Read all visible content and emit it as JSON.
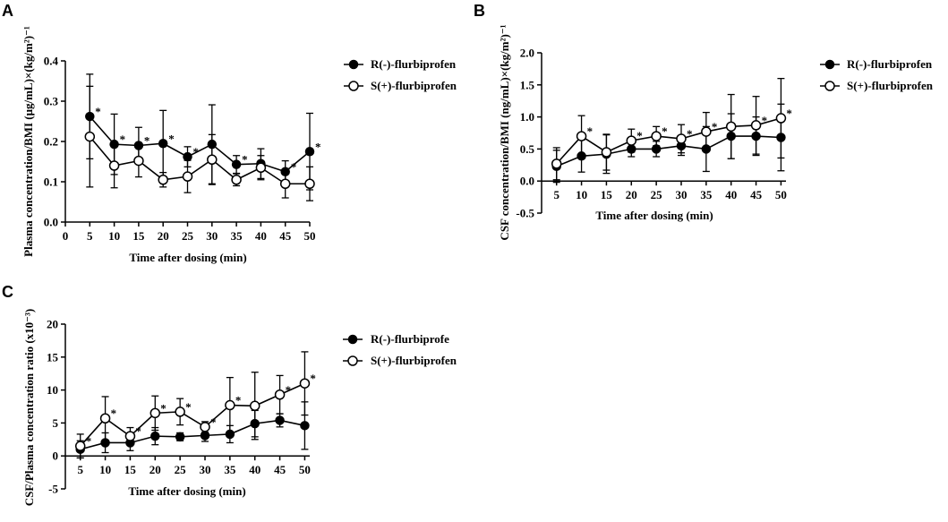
{
  "chart_data": [
    {
      "panel": "A",
      "type": "line",
      "xlabel": "Time after dosing (min)",
      "ylabel": "Plasma concentration/BMI (μg/mL)×(kg/m²)⁻¹",
      "xlim": [
        0,
        50
      ],
      "ylim": [
        0,
        0.4
      ],
      "xticks": [
        "0",
        "5",
        "10",
        "15",
        "20",
        "25",
        "30",
        "35",
        "40",
        "45",
        "50"
      ],
      "yticks": [
        "0.0",
        "0.1",
        "0.2",
        "0.3",
        "0.4"
      ],
      "x": [
        5,
        10,
        15,
        20,
        25,
        30,
        35,
        40,
        45,
        50
      ],
      "series": [
        {
          "name": "R(-)-flurbiprofen",
          "marker": "filled",
          "values": [
            0.262,
            0.193,
            0.19,
            0.195,
            0.162,
            0.193,
            0.143,
            0.145,
            0.125,
            0.175
          ],
          "errors": [
            0.105,
            0.075,
            0.045,
            0.082,
            0.025,
            0.098,
            0.022,
            0.037,
            0.027,
            0.095
          ]
        },
        {
          "name": "S(+)-flurbiprofen",
          "marker": "open",
          "values": [
            0.212,
            0.14,
            0.152,
            0.105,
            0.113,
            0.155,
            0.105,
            0.135,
            0.095,
            0.095
          ],
          "errors": [
            0.125,
            0.055,
            0.04,
            0.018,
            0.04,
            0.062,
            0.015,
            0.03,
            0.035,
            0.042
          ]
        }
      ],
      "stars_x": [
        5,
        10,
        15,
        20,
        25,
        35,
        45,
        50
      ]
    },
    {
      "panel": "B",
      "type": "line",
      "xlabel": "Time after dosing (min)",
      "ylabel": "CSF concentration/BMI (ng/mL)×(kg/m²)⁻¹",
      "xlim": [
        2,
        51
      ],
      "ylim": [
        -0.5,
        2.0
      ],
      "xticks": [
        "5",
        "10",
        "15",
        "20",
        "25",
        "30",
        "35",
        "40",
        "45",
        "50"
      ],
      "yticks": [
        "-0.5",
        "0.0",
        "0.5",
        "1.0",
        "1.5",
        "2.0"
      ],
      "x": [
        5,
        10,
        15,
        20,
        25,
        30,
        35,
        40,
        45,
        50
      ],
      "series": [
        {
          "name": "R(-)-flurbiprofen",
          "marker": "filled",
          "values": [
            0.23,
            0.39,
            0.42,
            0.5,
            0.5,
            0.55,
            0.5,
            0.7,
            0.7,
            0.68
          ],
          "errors": [
            0.25,
            0.25,
            0.3,
            0.12,
            0.12,
            0.15,
            0.35,
            0.35,
            0.3,
            0.52
          ]
        },
        {
          "name": "S(+)-flurbiprofen",
          "marker": "open",
          "values": [
            0.27,
            0.7,
            0.45,
            0.63,
            0.7,
            0.66,
            0.77,
            0.85,
            0.87,
            0.98
          ],
          "errors": [
            0.25,
            0.32,
            0.28,
            0.18,
            0.15,
            0.22,
            0.3,
            0.5,
            0.45,
            0.62
          ]
        }
      ],
      "stars_x": [
        10,
        20,
        25,
        30,
        35,
        45,
        50
      ]
    },
    {
      "panel": "C",
      "type": "line",
      "xlabel": "Time after dosing (min)",
      "ylabel": "CSF/Plasma concentration ratio (x10⁻³)",
      "xlim": [
        2,
        51
      ],
      "ylim": [
        -5,
        20
      ],
      "xticks": [
        "5",
        "10",
        "15",
        "20",
        "25",
        "30",
        "35",
        "40",
        "45",
        "50"
      ],
      "yticks": [
        "-5",
        "0",
        "5",
        "10",
        "15",
        "20"
      ],
      "x": [
        5,
        10,
        15,
        20,
        25,
        30,
        35,
        40,
        45,
        50
      ],
      "series": [
        {
          "name": "R(-)-flurbiprofe",
          "marker": "filled",
          "values": [
            1.0,
            2.0,
            2.0,
            3.0,
            2.9,
            3.1,
            3.3,
            4.9,
            5.4,
            4.6
          ],
          "errors": [
            1.3,
            1.5,
            1.2,
            1.3,
            0.6,
            0.9,
            1.3,
            2.0,
            1.0,
            3.6
          ]
        },
        {
          "name": "S(+)-flurbiprofen",
          "marker": "open",
          "values": [
            1.5,
            5.7,
            3.0,
            6.5,
            6.7,
            4.4,
            7.7,
            7.6,
            9.3,
            11.0
          ],
          "errors": [
            1.8,
            3.3,
            1.3,
            2.6,
            2.0,
            0.8,
            4.2,
            5.1,
            2.9,
            4.8
          ]
        }
      ],
      "stars_x": [
        5,
        10,
        15,
        20,
        25,
        30,
        35,
        45,
        50
      ]
    }
  ],
  "labels": {
    "panelA": "A",
    "panelB": "B",
    "panelC": "C",
    "star": "*"
  }
}
